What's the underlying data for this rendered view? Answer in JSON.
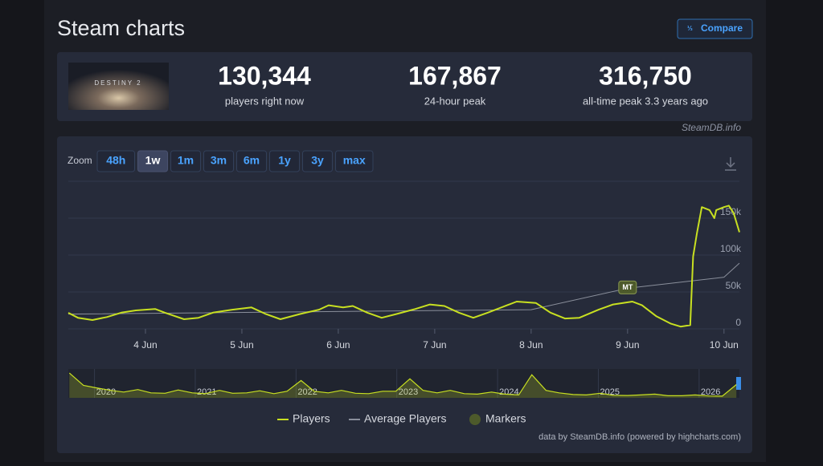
{
  "header": {
    "title": "Steam charts",
    "compare": "Compare"
  },
  "game": {
    "logo": "DESTINY 2"
  },
  "stats": [
    {
      "value": "130,344",
      "label": "players right now"
    },
    {
      "value": "167,867",
      "label": "24-hour peak"
    },
    {
      "value": "316,750",
      "label": "all-time peak 3.3 years ago"
    }
  ],
  "credit": "SteamDB.info",
  "zoom": {
    "label": "Zoom",
    "buttons": [
      "48h",
      "1w",
      "1m",
      "3m",
      "6m",
      "1y",
      "3y",
      "max"
    ],
    "active": 1
  },
  "chart_data": {
    "type": "line",
    "xlim": [
      3.2,
      10.16
    ],
    "xticks": [
      {
        "value": 4,
        "label": "4 Jun"
      },
      {
        "value": 5,
        "label": "5 Jun"
      },
      {
        "value": 6,
        "label": "6 Jun"
      },
      {
        "value": 7,
        "label": "7 Jun"
      },
      {
        "value": 8,
        "label": "8 Jun"
      },
      {
        "value": 9,
        "label": "9 Jun"
      },
      {
        "value": 10,
        "label": "10 Jun"
      }
    ],
    "ylim": [
      0,
      200000
    ],
    "yticks": [
      0,
      {
        "value": 50000,
        "label": "50k"
      },
      {
        "value": 100000,
        "label": "100k"
      },
      {
        "value": 150000,
        "label": "150k"
      }
    ],
    "grid": true,
    "series": [
      {
        "name": "Players",
        "color": "#c8e021",
        "x": [
          3.2,
          3.3,
          3.45,
          3.6,
          3.75,
          3.9,
          4.1,
          4.2,
          4.4,
          4.55,
          4.7,
          4.9,
          5.1,
          5.25,
          5.4,
          5.6,
          5.8,
          5.9,
          6.05,
          6.15,
          6.3,
          6.45,
          6.6,
          6.8,
          6.95,
          7.1,
          7.25,
          7.4,
          7.55,
          7.75,
          7.85,
          8.05,
          8.2,
          8.35,
          8.5,
          8.7,
          8.85,
          9.05,
          9.15,
          9.3,
          9.45,
          9.55,
          9.65,
          9.68,
          9.72,
          9.77,
          9.85,
          9.9,
          9.92,
          10.0,
          10.05,
          10.1,
          10.16
        ],
        "values": [
          21700,
          15000,
          12000,
          16000,
          22000,
          25000,
          27000,
          22000,
          13000,
          15000,
          22000,
          26000,
          29000,
          20000,
          13000,
          20000,
          26000,
          32000,
          29000,
          31000,
          22000,
          15000,
          20000,
          27000,
          33000,
          31000,
          22000,
          15000,
          22000,
          32000,
          37000,
          35000,
          22000,
          14000,
          15000,
          26000,
          33000,
          37000,
          32000,
          17000,
          7000,
          3000,
          5000,
          98000,
          130000,
          165000,
          161000,
          150000,
          161000,
          165000,
          167000,
          157000,
          131000
        ]
      },
      {
        "name": "Average Players",
        "color": "#8a8f9b",
        "x": [
          3.2,
          8.0,
          9.0,
          10.0,
          10.16
        ],
        "values": [
          20000,
          26000,
          55000,
          70000,
          89000
        ]
      }
    ],
    "markers": {
      "name": "Markers",
      "color": "#4d5a2b",
      "points": [
        {
          "x": 9.0,
          "y": 55000,
          "label": "MT"
        }
      ]
    },
    "navigator": {
      "xlim": [
        2019.74,
        2026.4
      ],
      "ylim": [
        0,
        330000
      ],
      "xticks": [
        2020,
        2021,
        2022,
        2023,
        2024,
        2025,
        2026
      ],
      "x": [
        2019.75,
        2019.89,
        2020.02,
        2020.16,
        2020.29,
        2020.43,
        2020.56,
        2020.7,
        2020.83,
        2020.97,
        2021.1,
        2021.24,
        2021.37,
        2021.51,
        2021.64,
        2021.78,
        2021.91,
        2022.05,
        2022.18,
        2022.32,
        2022.45,
        2022.59,
        2022.72,
        2022.86,
        2022.99,
        2023.13,
        2023.26,
        2023.4,
        2023.53,
        2023.67,
        2023.8,
        2023.94,
        2024.07,
        2024.21,
        2024.34,
        2024.48,
        2024.61,
        2024.75,
        2024.88,
        2025.02,
        2025.15,
        2025.29,
        2025.42,
        2025.56,
        2025.69,
        2025.83,
        2025.96,
        2026.1,
        2026.23,
        2026.37
      ],
      "values": [
        300000,
        150000,
        120000,
        90000,
        70000,
        100000,
        60000,
        55000,
        95000,
        60000,
        50000,
        90000,
        55000,
        60000,
        85000,
        50000,
        80000,
        210000,
        80000,
        60000,
        90000,
        55000,
        50000,
        80000,
        80000,
        230000,
        90000,
        60000,
        90000,
        50000,
        45000,
        70000,
        45000,
        35000,
        280000,
        90000,
        60000,
        40000,
        35000,
        55000,
        30000,
        28000,
        35000,
        45000,
        25000,
        25000,
        35000,
        22000,
        20000,
        160000
      ]
    }
  },
  "footer": "data by SteamDB.info (powered by highcharts.com)"
}
